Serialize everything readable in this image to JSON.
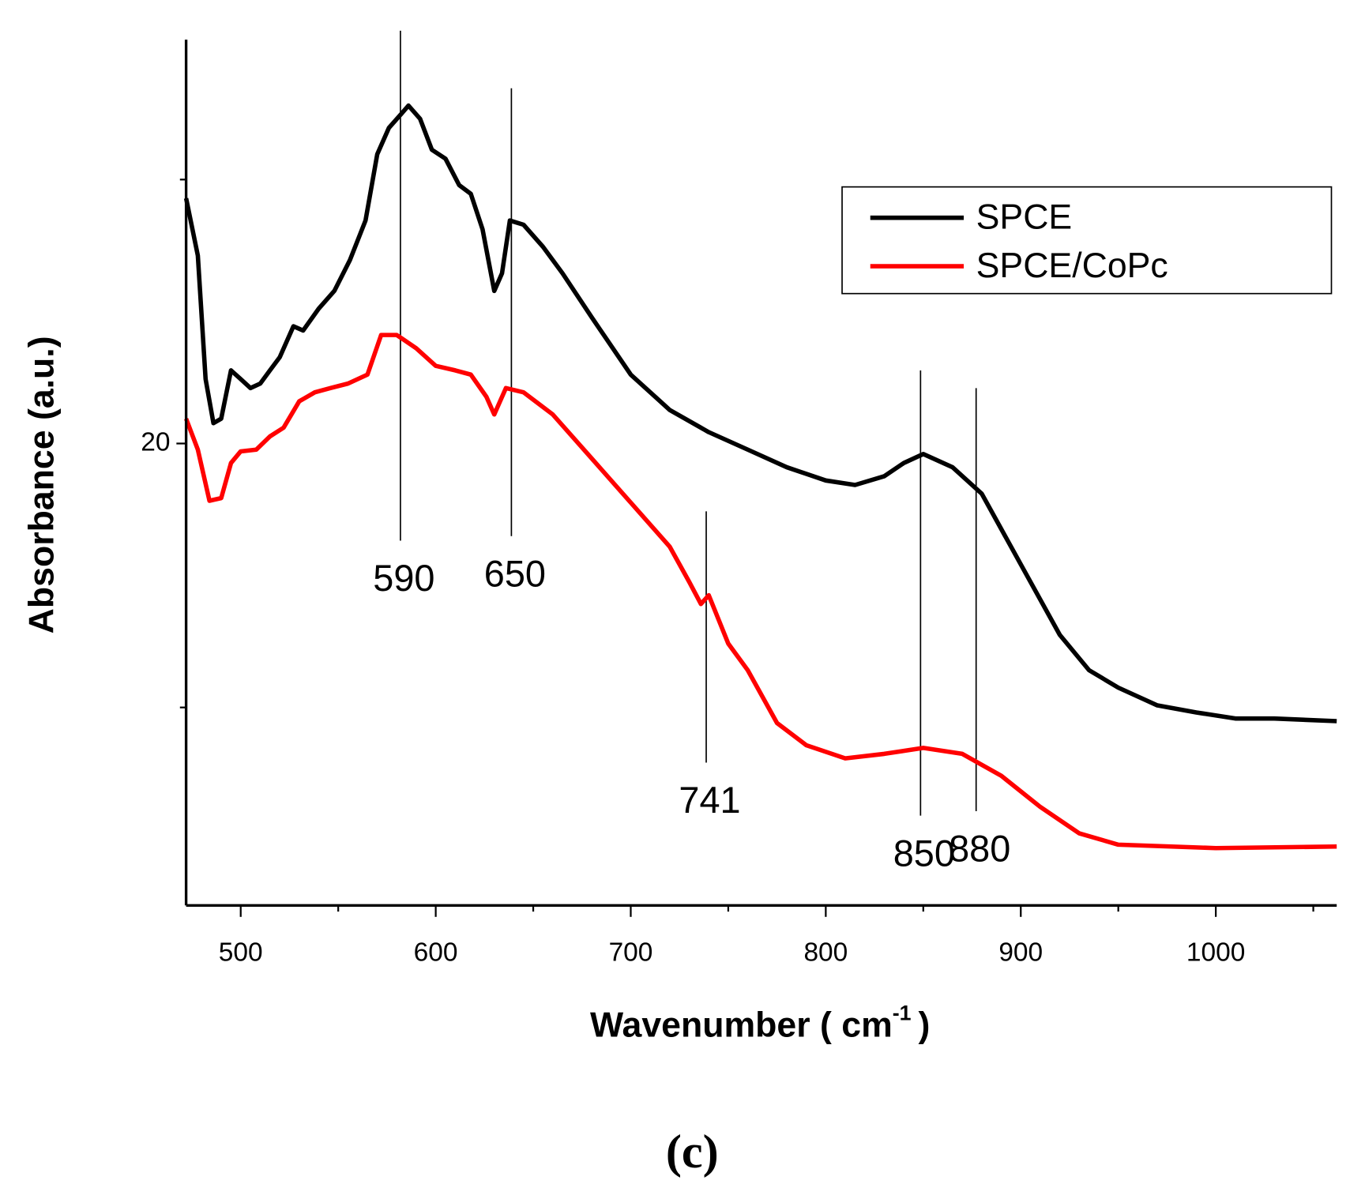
{
  "chart_data": {
    "type": "line",
    "ylabel": "Absorbance (a.u.)",
    "xlabel": {
      "text": "Wavenumber ( cm",
      "sup": "-1",
      "end": ")"
    },
    "caption": "(c)",
    "xlim": [
      472,
      1062
    ],
    "xticks": [
      500,
      600,
      700,
      800,
      900,
      1000
    ],
    "xminor_ticks": [
      550,
      650,
      750,
      850,
      950,
      1050
    ],
    "ylim": [
      2.5,
      35.3
    ],
    "yticks": [
      20
    ],
    "yminor_ticks": [
      10,
      30
    ],
    "legend": "upper right",
    "series": [
      {
        "name": "SPCE",
        "color": "#000000",
        "x": [
          472,
          478,
          482,
          486,
          490,
          495,
          500,
          505,
          510,
          515,
          520,
          527,
          532,
          540,
          548,
          556,
          564,
          570,
          576,
          582,
          586,
          592,
          598,
          605,
          612,
          618,
          624,
          630,
          634,
          638,
          645,
          655,
          665,
          680,
          700,
          720,
          740,
          760,
          780,
          800,
          815,
          830,
          840,
          850,
          865,
          880,
          900,
          920,
          935,
          950,
          970,
          990,
          1010,
          1030,
          1062
        ],
        "values": [
          29.29,
          27.12,
          22.44,
          20.77,
          20.94,
          22.77,
          22.44,
          22.1,
          22.27,
          22.77,
          23.27,
          24.44,
          24.28,
          25.11,
          25.78,
          26.95,
          28.45,
          30.96,
          31.96,
          32.46,
          32.8,
          32.3,
          31.13,
          30.79,
          29.79,
          29.46,
          28.12,
          25.78,
          26.45,
          28.45,
          28.29,
          27.45,
          26.45,
          24.78,
          22.61,
          21.27,
          20.43,
          19.77,
          19.1,
          18.6,
          18.43,
          18.76,
          19.26,
          19.6,
          19.1,
          18.1,
          15.42,
          12.75,
          11.41,
          10.75,
          10.08,
          9.81,
          9.58,
          9.58,
          9.48
        ]
      },
      {
        "name": "SPCE/CoPc",
        "color": "#ff0000",
        "x": [
          472,
          478,
          484,
          490,
          495,
          500,
          508,
          515,
          522,
          530,
          538,
          546,
          555,
          565,
          572,
          580,
          590,
          600,
          610,
          618,
          626,
          630,
          636,
          645,
          660,
          680,
          700,
          720,
          730,
          736,
          740,
          750,
          760,
          775,
          790,
          810,
          830,
          850,
          870,
          890,
          910,
          930,
          950,
          1000,
          1062
        ],
        "values": [
          20.94,
          19.77,
          17.83,
          17.93,
          19.26,
          19.7,
          19.77,
          20.27,
          20.6,
          21.6,
          21.94,
          22.1,
          22.27,
          22.61,
          24.11,
          24.11,
          23.61,
          22.94,
          22.77,
          22.61,
          21.77,
          21.1,
          22.1,
          21.94,
          21.1,
          19.43,
          17.76,
          16.09,
          14.75,
          13.92,
          14.25,
          12.42,
          11.41,
          9.41,
          8.57,
          8.07,
          8.24,
          8.47,
          8.24,
          7.41,
          6.23,
          5.23,
          4.8,
          4.67,
          4.73
        ]
      }
    ],
    "annotations": [
      {
        "text": "590",
        "x": 581.9,
        "y_top": 35.64,
        "y_bottom": 16.32
      },
      {
        "text": "650",
        "x": 638.8,
        "y_top": 33.46,
        "y_bottom": 16.49
      },
      {
        "text": "741",
        "x": 738.7,
        "y_top": 17.43,
        "y_bottom": 7.91
      },
      {
        "text": "850",
        "x": 848.6,
        "y_top": 22.77,
        "y_bottom": 5.9
      },
      {
        "text": "880",
        "x": 877.1,
        "y_top": 22.1,
        "y_bottom": 6.07
      }
    ]
  }
}
